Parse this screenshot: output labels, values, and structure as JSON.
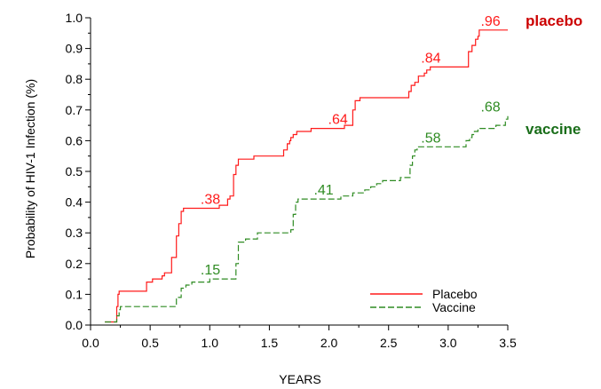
{
  "chart_data": {
    "type": "line",
    "title": "",
    "xlabel": "YEARS",
    "ylabel": "Probability of HIV-1 Infection (%)",
    "xlim": [
      0.0,
      3.5
    ],
    "ylim": [
      0.0,
      1.0
    ],
    "x_ticks": [
      "0.0",
      "0.5",
      "1.0",
      "1.5",
      "2.0",
      "2.5",
      "3.0",
      "3.5"
    ],
    "y_ticks": [
      "0.0",
      "0.1",
      "0.2",
      "0.3",
      "0.4",
      "0.5",
      "0.6",
      "0.7",
      "0.8",
      "0.9",
      "1.0"
    ],
    "grid": false,
    "legend_position": "bottom-right",
    "series": [
      {
        "name": "Placebo",
        "color": "#ff1a1a",
        "line_style": "solid",
        "x": [
          0.12,
          0.21,
          0.22,
          0.23,
          0.24,
          0.45,
          0.47,
          0.52,
          0.56,
          0.6,
          0.62,
          0.65,
          0.68,
          0.72,
          0.74,
          0.76,
          0.78,
          1.0,
          1.08,
          1.12,
          1.15,
          1.17,
          1.2,
          1.22,
          1.24,
          1.37,
          1.58,
          1.62,
          1.65,
          1.67,
          1.68,
          1.7,
          1.73,
          1.75,
          1.78,
          1.8,
          1.82,
          1.85,
          1.9,
          2.0,
          2.13,
          2.18,
          2.2,
          2.22,
          2.26,
          2.65,
          2.67,
          2.69,
          2.72,
          2.75,
          2.8,
          2.82,
          2.85,
          3.07,
          3.17,
          3.2,
          3.23,
          3.25,
          3.26,
          3.3,
          3.5
        ],
        "y": [
          0.01,
          0.01,
          0.06,
          0.1,
          0.11,
          0.11,
          0.14,
          0.15,
          0.15,
          0.16,
          0.17,
          0.17,
          0.22,
          0.29,
          0.33,
          0.37,
          0.38,
          0.38,
          0.39,
          0.39,
          0.41,
          0.42,
          0.49,
          0.52,
          0.54,
          0.55,
          0.55,
          0.57,
          0.59,
          0.6,
          0.61,
          0.62,
          0.63,
          0.63,
          0.63,
          0.63,
          0.63,
          0.64,
          0.64,
          0.64,
          0.65,
          0.65,
          0.7,
          0.73,
          0.74,
          0.74,
          0.76,
          0.78,
          0.79,
          0.81,
          0.82,
          0.83,
          0.84,
          0.84,
          0.89,
          0.91,
          0.93,
          0.94,
          0.96,
          0.96,
          0.96
        ]
      },
      {
        "name": "Vaccine",
        "color": "#2e8b22",
        "line_style": "dashed",
        "x": [
          0.12,
          0.2,
          0.22,
          0.24,
          0.25,
          0.7,
          0.72,
          0.76,
          0.8,
          0.85,
          1.0,
          1.2,
          1.22,
          1.24,
          1.3,
          1.4,
          1.68,
          1.7,
          1.72,
          1.74,
          1.8,
          2.0,
          2.1,
          2.15,
          2.2,
          2.3,
          2.35,
          2.4,
          2.45,
          2.6,
          2.68,
          2.7,
          2.72,
          2.74,
          2.8,
          3.0,
          3.1,
          3.15,
          3.18,
          3.2,
          3.22,
          3.25,
          3.3,
          3.4,
          3.45,
          3.48,
          3.5
        ],
        "y": [
          0.01,
          0.01,
          0.03,
          0.05,
          0.06,
          0.06,
          0.09,
          0.12,
          0.13,
          0.14,
          0.15,
          0.15,
          0.2,
          0.27,
          0.28,
          0.3,
          0.31,
          0.36,
          0.4,
          0.41,
          0.41,
          0.41,
          0.42,
          0.42,
          0.43,
          0.44,
          0.45,
          0.46,
          0.47,
          0.48,
          0.52,
          0.55,
          0.57,
          0.58,
          0.58,
          0.58,
          0.58,
          0.6,
          0.61,
          0.62,
          0.63,
          0.64,
          0.64,
          0.65,
          0.65,
          0.67,
          0.68
        ]
      }
    ],
    "annotations": [
      {
        "text": ".38",
        "x": 1.05,
        "y": 0.38,
        "color": "#ff1a1a"
      },
      {
        "text": ".64",
        "x": 2.12,
        "y": 0.64,
        "color": "#ff1a1a"
      },
      {
        "text": ".84",
        "x": 2.9,
        "y": 0.84,
        "color": "#ff1a1a"
      },
      {
        "text": ".96",
        "x": 3.4,
        "y": 0.96,
        "color": "#ff1a1a"
      },
      {
        "text": ".15",
        "x": 1.05,
        "y": 0.15,
        "color": "#2e8b22"
      },
      {
        "text": ".41",
        "x": 1.12,
        "y": 0.41,
        "color": "#2e8b22",
        "anchor_x": 2.0
      },
      {
        "text": ".58",
        "x": 2.9,
        "y": 0.58,
        "color": "#2e8b22"
      },
      {
        "text": ".68",
        "x": 3.4,
        "y": 0.68,
        "color": "#2e8b22"
      }
    ],
    "side_labels": [
      {
        "text": "placebo",
        "color": "#cc0000"
      },
      {
        "text": "vaccine",
        "color": "#1a6e1a"
      }
    ]
  }
}
